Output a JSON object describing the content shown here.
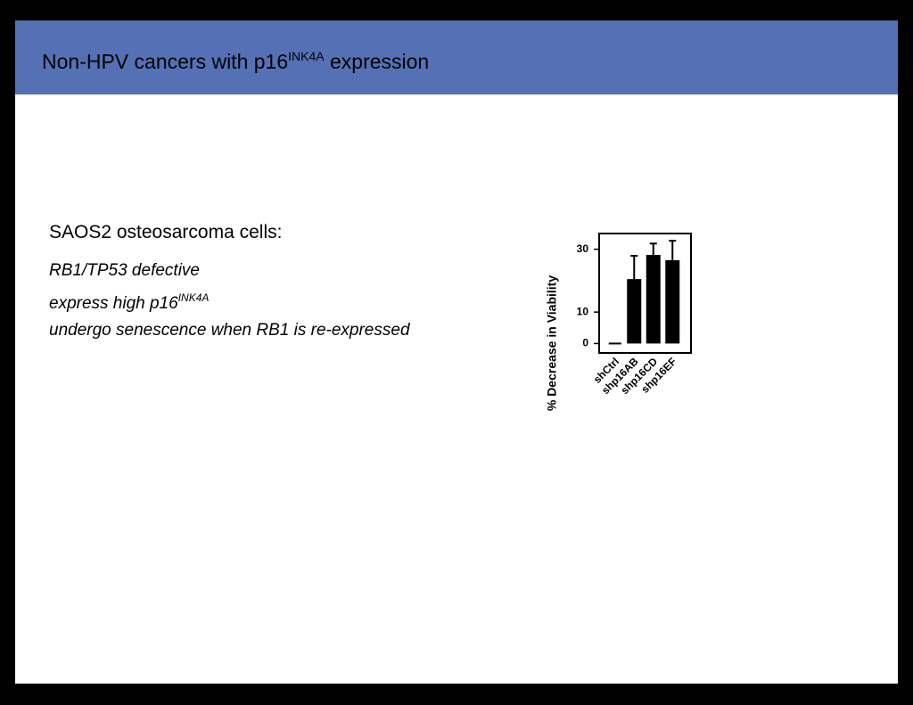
{
  "header": {
    "title": {
      "text": "Non-HPV cancers with p16",
      "sup": "INK4A",
      "tail": "expression"
    }
  },
  "body": {
    "heading": "SAOS2 osteosarcoma cells:",
    "lines": [
      {
        "text": "RB1/TP53 defective"
      },
      {
        "text": "express high p16",
        "sup": "INK4A"
      },
      {
        "text": "undergo senescence when RB1 is re-expressed"
      }
    ]
  },
  "chart_data": {
    "type": "bar",
    "y_label": "% Decrease in Viability",
    "categories": [
      "shCtrl",
      "shp16AB",
      "shp16CD",
      "shp16EF"
    ],
    "values": [
      0,
      20.5,
      28.2,
      26.5
    ],
    "errors": [
      0,
      7.4,
      3.6,
      6.2
    ],
    "color": "#000000",
    "ylim": [
      -3,
      35
    ],
    "yticks": [
      0,
      10,
      30
    ]
  }
}
